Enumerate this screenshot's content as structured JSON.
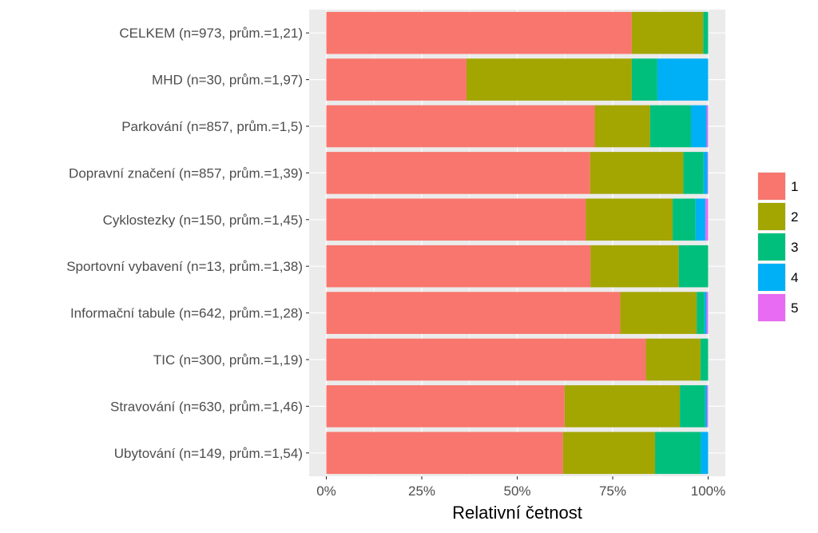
{
  "chart_data": {
    "type": "bar",
    "orientation": "horizontal",
    "stacked": true,
    "normalized": true,
    "xlabel": "Relativní četnost",
    "ylabel": "",
    "xlim": [
      0,
      1
    ],
    "x_ticks": [
      0,
      0.25,
      0.5,
      0.75,
      1.0
    ],
    "x_tick_labels": [
      "0%",
      "25%",
      "50%",
      "75%",
      "100%"
    ],
    "grid": true,
    "legend_position": "right",
    "categories": [
      "CELKEM (n=973, prům.=1,21)",
      "MHD (n=30, prům.=1,97)",
      "Parkování (n=857, prům.=1,5)",
      "Dopravní značení (n=857, prům.=1,39)",
      "Cyklostezky (n=150, prům.=1,45)",
      "Sportovní vybavení (n=13, prům.=1,38)",
      "Informační tabule (n=642, prům.=1,28)",
      "TIC (n=300, prům.=1,19)",
      "Stravování (n=630, prům.=1,46)",
      "Ubytování (n=149, prům.=1,54)"
    ],
    "series": [
      {
        "name": "1",
        "color": "#F8766D",
        "values": [
          0.8,
          0.367,
          0.703,
          0.691,
          0.68,
          0.692,
          0.77,
          0.837,
          0.624,
          0.62
        ]
      },
      {
        "name": "2",
        "color": "#A3A500",
        "values": [
          0.187,
          0.433,
          0.145,
          0.244,
          0.227,
          0.231,
          0.2,
          0.143,
          0.302,
          0.241
        ]
      },
      {
        "name": "3",
        "color": "#00BF7D",
        "values": [
          0.013,
          0.067,
          0.107,
          0.053,
          0.06,
          0.077,
          0.02,
          0.02,
          0.066,
          0.12
        ]
      },
      {
        "name": "4",
        "color": "#00B0F6",
        "values": [
          0.0,
          0.133,
          0.041,
          0.01,
          0.026,
          0.0,
          0.006,
          0.0,
          0.005,
          0.019
        ]
      },
      {
        "name": "5",
        "color": "#E76BF3",
        "values": [
          0.0,
          0.0,
          0.004,
          0.002,
          0.007,
          0.0,
          0.004,
          0.0,
          0.003,
          0.0
        ]
      }
    ]
  }
}
